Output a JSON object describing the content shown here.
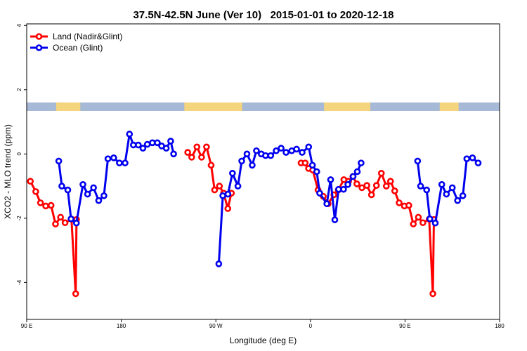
{
  "chart_data": {
    "type": "line",
    "title": "37.5N-42.5N June (Ver 10)   2015-01-01 to 2020-12-18",
    "xlabel": "Longitude (deg E)",
    "ylabel": "XCO2 - MLO trend (ppm)",
    "x_ticks": [
      {
        "value": 90,
        "label": "90 E"
      },
      {
        "value": 180,
        "label": "180"
      },
      {
        "value": 270,
        "label": "90 W"
      },
      {
        "value": 360,
        "label": "0"
      },
      {
        "value": 450,
        "label": "90 E"
      },
      {
        "value": 540,
        "label": "180"
      }
    ],
    "y_ticks": [
      {
        "value": 4,
        "label": "4"
      },
      {
        "value": 2,
        "label": "2"
      },
      {
        "value": 0,
        "label": "0"
      },
      {
        "value": -2,
        "label": "-2"
      },
      {
        "value": -4,
        "label": "-4"
      }
    ],
    "xlim": [
      90,
      540
    ],
    "ylim": [
      -5.15,
      4.05
    ],
    "legend_position": "top-left",
    "colors": {
      "land": "#ff0000",
      "ocean": "#0000ee",
      "land_strip": "#f4d47c",
      "ocean_strip": "#a6b9d6"
    },
    "land_mask": [
      [
        118,
        141
      ],
      [
        240,
        295
      ],
      [
        373,
        417
      ],
      [
        483,
        501
      ]
    ],
    "series": [
      {
        "name": "Land (Nadir&Glint)",
        "key": "land",
        "segments": [
          [
            [
              93.5,
              -0.85
            ],
            [
              98.6,
              -1.17
            ],
            [
              103.1,
              -1.52
            ],
            [
              108.1,
              -1.62
            ],
            [
              113.2,
              -1.6
            ],
            [
              117.4,
              -2.18
            ],
            [
              122.2,
              -1.97
            ],
            [
              126.5,
              -2.14
            ],
            [
              132.6,
              -2.03
            ],
            [
              136.6,
              -4.35
            ],
            [
              137.4,
              -2.04
            ]
          ],
          [
            [
              243.2,
              0.05
            ],
            [
              247.0,
              -0.1
            ],
            [
              252.0,
              0.22
            ],
            [
              256.4,
              -0.1
            ],
            [
              261.1,
              0.22
            ],
            [
              265.5,
              -0.35
            ],
            [
              268.8,
              -1.12
            ],
            [
              273.4,
              -1.0
            ],
            [
              277.4,
              -1.22
            ],
            [
              281.4,
              -1.7
            ],
            [
              284.8,
              -1.22
            ]
          ],
          [
            [
              351.1,
              -0.28
            ],
            [
              355.0,
              -0.28
            ],
            [
              358.2,
              -0.45
            ],
            [
              362.2,
              -0.5
            ],
            [
              367.2,
              -1.12
            ],
            [
              372.2,
              -1.32
            ],
            [
              376.8,
              -1.55
            ],
            [
              382.3,
              -1.27
            ],
            [
              386.5,
              -1.12
            ],
            [
              391.8,
              -0.8
            ],
            [
              396.3,
              -0.85
            ],
            [
              400.4,
              -0.7
            ],
            [
              404.2,
              -0.93
            ],
            [
              409.0,
              -1.05
            ],
            [
              413.7,
              -0.98
            ],
            [
              418.1,
              -1.27
            ],
            [
              422.8,
              -0.98
            ],
            [
              427.5,
              -0.6
            ],
            [
              432.2,
              -1.0
            ],
            [
              436.2,
              -0.85
            ],
            [
              440.2,
              -1.15
            ],
            [
              444.4,
              -1.52
            ],
            [
              449.4,
              -1.62
            ],
            [
              453.6,
              -1.6
            ],
            [
              457.9,
              -2.18
            ],
            [
              462.7,
              -1.97
            ],
            [
              467.0,
              -2.14
            ],
            [
              473.0,
              -2.03
            ],
            [
              476.5,
              -4.35
            ],
            [
              477.5,
              -2.04
            ]
          ]
        ]
      },
      {
        "name": "Ocean (Glint)",
        "key": "ocean",
        "segments": [
          [
            [
              120.5,
              -0.22
            ],
            [
              123.4,
              -1.0
            ],
            [
              129.1,
              -1.12
            ],
            [
              132.2,
              -2.02
            ],
            [
              137.3,
              -2.15
            ],
            [
              143.5,
              -0.95
            ],
            [
              147.9,
              -1.25
            ],
            [
              153.6,
              -1.05
            ],
            [
              158.5,
              -1.45
            ],
            [
              163.5,
              -1.3
            ],
            [
              167.3,
              -0.15
            ],
            [
              172.8,
              -0.12
            ],
            [
              178.2,
              -0.28
            ],
            [
              183.6,
              -0.28
            ],
            [
              187.8,
              0.62
            ],
            [
              191.5,
              0.28
            ],
            [
              196.2,
              0.28
            ],
            [
              200.6,
              0.18
            ],
            [
              204.8,
              0.3
            ],
            [
              209.6,
              0.35
            ],
            [
              214.3,
              0.35
            ],
            [
              218.4,
              0.25
            ],
            [
              222.8,
              0.18
            ],
            [
              227.0,
              0.4
            ],
            [
              229.8,
              0.0
            ]
          ],
          [
            [
              272.8,
              -3.42
            ],
            [
              276.6,
              -1.3
            ],
            [
              281.5,
              -1.25
            ],
            [
              285.8,
              -0.6
            ],
            [
              291.0,
              -1.0
            ],
            [
              294.6,
              -0.22
            ],
            [
              299.6,
              0.0
            ],
            [
              304.6,
              -0.35
            ],
            [
              308.6,
              0.1
            ],
            [
              313.2,
              0.0
            ],
            [
              317.3,
              -0.05
            ],
            [
              322.2,
              -0.05
            ],
            [
              327.4,
              0.1
            ],
            [
              332.1,
              0.18
            ],
            [
              336.8,
              0.05
            ],
            [
              342.2,
              0.1
            ],
            [
              346.8,
              0.15
            ],
            [
              352.1,
              0.05
            ],
            [
              358.3,
              0.22
            ],
            [
              361.9,
              -0.35
            ],
            [
              366.0,
              -0.55
            ],
            [
              368.8,
              -1.22
            ],
            [
              375.6,
              -1.55
            ],
            [
              379.2,
              -0.8
            ],
            [
              383.2,
              -2.05
            ],
            [
              386.8,
              -1.1
            ],
            [
              391.5,
              -1.1
            ],
            [
              395.6,
              -0.95
            ],
            [
              400.6,
              -0.7
            ],
            [
              404.6,
              -0.55
            ],
            [
              408.2,
              -0.28
            ]
          ],
          [
            [
              462.0,
              -0.22
            ],
            [
              464.8,
              -1.0
            ],
            [
              470.6,
              -1.12
            ],
            [
              473.6,
              -2.02
            ],
            [
              478.8,
              -2.15
            ],
            [
              485.0,
              -0.95
            ],
            [
              489.4,
              -1.25
            ],
            [
              495.0,
              -1.05
            ],
            [
              500.0,
              -1.45
            ],
            [
              505.0,
              -1.3
            ],
            [
              508.8,
              -0.15
            ],
            [
              514.2,
              -0.12
            ],
            [
              519.6,
              -0.28
            ]
          ]
        ]
      }
    ]
  }
}
